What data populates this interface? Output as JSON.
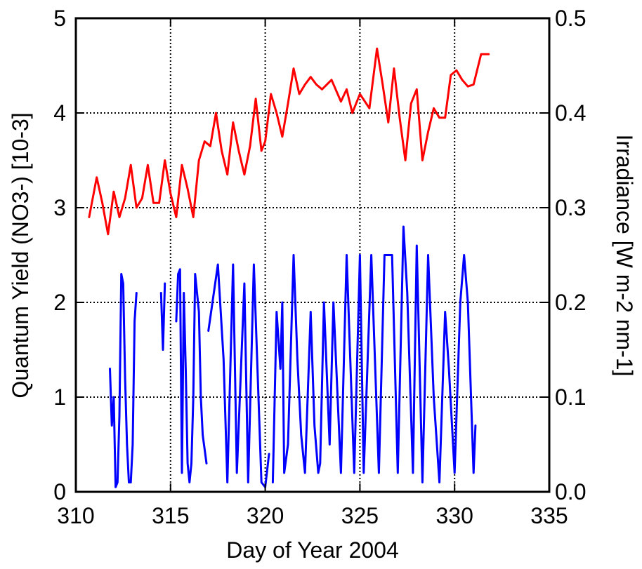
{
  "chart_data": {
    "type": "line",
    "title": "",
    "xlabel": "Day of Year 2004",
    "ylabel_left": "Quantum Yield (NO3-)  [10-3]",
    "ylabel_right": "Irradiance  [W m-2 nm-1]",
    "xlim": [
      310,
      335
    ],
    "ylim_left": [
      0,
      5
    ],
    "ylim_right": [
      0.0,
      0.5
    ],
    "x_ticks": [
      "310",
      "315",
      "320",
      "325",
      "330",
      "335"
    ],
    "y_left_ticks": [
      "0",
      "1",
      "2",
      "3",
      "4",
      "5"
    ],
    "y_right_ticks": [
      "0.0",
      "0.1",
      "0.2",
      "0.3",
      "0.4",
      "0.5"
    ],
    "grid": true,
    "legend": "none",
    "series": [
      {
        "color": "#ff0000",
        "axis": "left",
        "x": [
          310.7,
          311.1,
          311.4,
          311.7,
          312.0,
          312.3,
          312.6,
          312.9,
          313.2,
          313.5,
          313.8,
          314.1,
          314.4,
          314.7,
          315.0,
          315.3,
          315.6,
          315.9,
          316.2,
          316.5,
          316.8,
          317.1,
          317.4,
          317.7,
          318.0,
          318.3,
          318.6,
          318.9,
          319.2,
          319.5,
          319.8,
          320.0,
          320.3,
          320.6,
          320.9,
          321.2,
          321.5,
          321.8,
          322.1,
          322.4,
          322.7,
          323.0,
          323.5,
          324.0,
          324.3,
          324.6,
          325.0,
          325.5,
          325.9,
          326.2,
          326.5,
          326.8,
          327.1,
          327.4,
          327.7,
          328.0,
          328.3,
          328.6,
          328.9,
          329.2,
          329.5,
          329.8,
          330.1,
          330.4,
          330.7,
          331.0,
          331.4,
          331.8
        ],
        "values": [
          2.9,
          3.32,
          3.05,
          2.72,
          3.17,
          2.9,
          3.1,
          3.45,
          3.0,
          3.1,
          3.45,
          3.05,
          3.05,
          3.5,
          3.15,
          2.9,
          3.45,
          3.2,
          2.9,
          3.5,
          3.7,
          3.65,
          4.0,
          3.6,
          3.35,
          3.9,
          3.6,
          3.35,
          3.65,
          4.15,
          3.6,
          3.7,
          4.2,
          4.0,
          3.75,
          4.1,
          4.47,
          4.2,
          4.3,
          4.38,
          4.3,
          4.25,
          4.35,
          4.12,
          4.25,
          4.0,
          4.2,
          4.05,
          4.68,
          4.3,
          3.9,
          4.47,
          3.95,
          3.5,
          4.1,
          4.25,
          3.5,
          3.8,
          4.05,
          3.95,
          3.95,
          4.4,
          4.45,
          4.35,
          4.28,
          4.3,
          4.62,
          4.62
        ]
      },
      {
        "color": "#0000ff",
        "axis": "right",
        "segments": [
          {
            "x": [
              311.8,
              311.9,
              312.0,
              312.1,
              312.2,
              312.3,
              312.4,
              312.5,
              312.6,
              312.7,
              312.8,
              312.9,
              313.0,
              313.1,
              313.2
            ],
            "values": [
              0.13,
              0.07,
              0.1,
              0.005,
              0.01,
              0.08,
              0.23,
              0.22,
              0.12,
              0.05,
              0.01,
              0.01,
              0.05,
              0.18,
              0.21
            ]
          },
          {
            "x": [
              314.5,
              314.6,
              314.7
            ],
            "values": [
              0.21,
              0.15,
              0.22
            ]
          },
          {
            "x": [
              315.3,
              315.4,
              315.5,
              315.6,
              315.7,
              315.8,
              315.9,
              316.0,
              316.1,
              316.2,
              316.3,
              316.5,
              316.6,
              316.7,
              316.9
            ],
            "values": [
              0.18,
              0.23,
              0.235,
              0.02,
              0.21,
              0.13,
              0.03,
              0.01,
              0.03,
              0.1,
              0.23,
              0.19,
              0.1,
              0.06,
              0.03
            ]
          },
          {
            "x": [
              317.0,
              317.5,
              317.8,
              318.0,
              318.3,
              318.5,
              318.9,
              319.1,
              319.4,
              319.8,
              320.0,
              320.2
            ],
            "values": [
              0.17,
              0.24,
              0.14,
              0.01,
              0.24,
              0.02,
              0.22,
              0.01,
              0.24,
              0.01,
              0.005,
              0.04
            ]
          },
          {
            "x": [
              320.4,
              320.6,
              320.8,
              320.9,
              321.0,
              321.2,
              321.5,
              321.7,
              321.9,
              322.1,
              322.4,
              322.6,
              322.8,
              322.9,
              323.1,
              323.4,
              323.6,
              324.0,
              324.3,
              324.7,
              325.0,
              325.2,
              325.6,
              326.0,
              326.3,
              326.7,
              327.0,
              327.3,
              327.5,
              327.8,
              328.0,
              328.3,
              328.6,
              328.9,
              329.2,
              329.5,
              329.7,
              330.0,
              330.3,
              330.5,
              330.7,
              331.0,
              331.1
            ],
            "values": [
              0.01,
              0.19,
              0.13,
              0.2,
              0.02,
              0.05,
              0.25,
              0.14,
              0.06,
              0.02,
              0.19,
              0.07,
              0.02,
              0.03,
              0.2,
              0.05,
              0.2,
              0.02,
              0.25,
              0.02,
              0.25,
              0.02,
              0.25,
              0.02,
              0.25,
              0.25,
              0.02,
              0.28,
              0.21,
              0.02,
              0.26,
              0.01,
              0.25,
              0.1,
              0.01,
              0.19,
              0.13,
              0.02,
              0.2,
              0.25,
              0.2,
              0.02,
              0.07
            ]
          }
        ]
      }
    ]
  }
}
